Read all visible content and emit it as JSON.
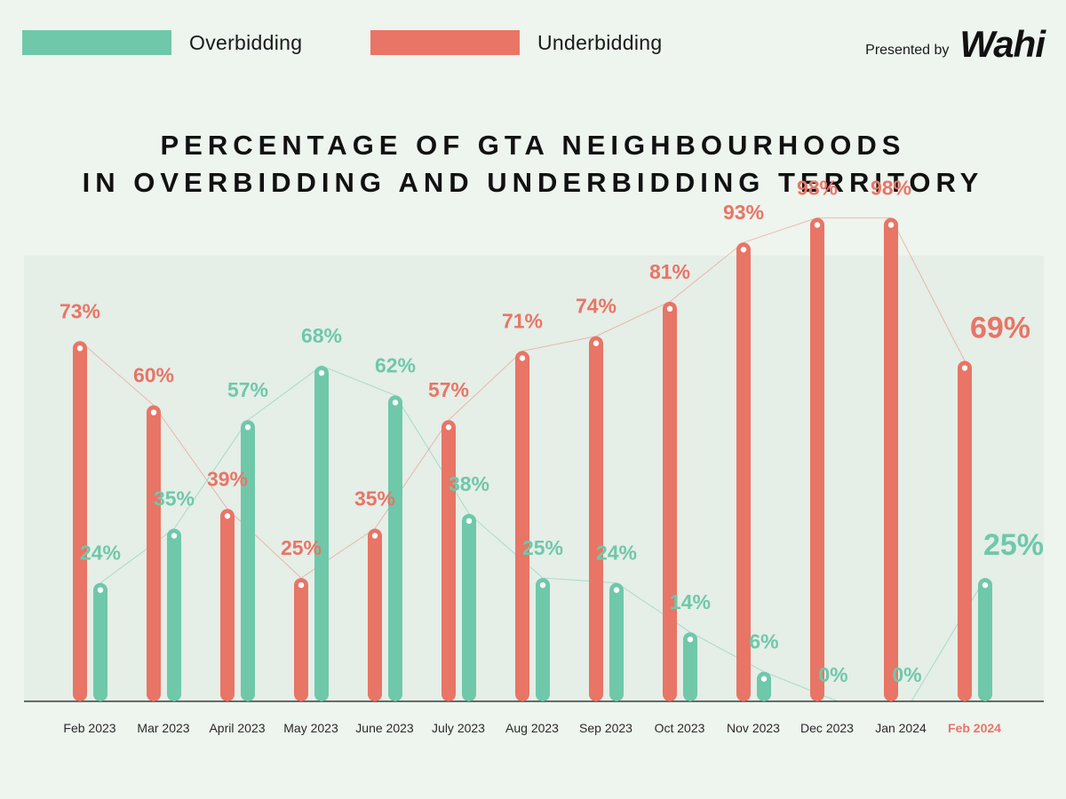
{
  "legend": {
    "over_label": "Overbidding",
    "under_label": "Underbidding"
  },
  "brand": {
    "presented_by": "Presented by",
    "logo_text": "Wahi"
  },
  "title_lines": [
    "PERCENTAGE OF GTA NEIGHBOURHOODS",
    "IN OVERBIDDING AND UNDERBIDDING TERRITORY"
  ],
  "colors": {
    "over": "#6fc8aa",
    "under": "#e87566",
    "highlight_label": "#e87566",
    "axis": "#1a1a1a"
  },
  "chart_data": {
    "type": "bar",
    "title": "PERCENTAGE OF GTA NEIGHBOURHOODS IN OVERBIDDING AND UNDERBIDDING TERRITORY",
    "categories": [
      "Feb 2023",
      "Mar 2023",
      "April 2023",
      "May 2023",
      "June 2023",
      "July 2023",
      "Aug 2023",
      "Sep 2023",
      "Oct 2023",
      "Nov 2023",
      "Dec 2023",
      "Jan 2024",
      "Feb 2024"
    ],
    "highlight_category": "Feb 2024",
    "series": [
      {
        "name": "Underbidding",
        "values": [
          73,
          60,
          39,
          25,
          35,
          57,
          71,
          74,
          81,
          93,
          98,
          98,
          69
        ]
      },
      {
        "name": "Overbidding",
        "values": [
          24,
          35,
          57,
          68,
          62,
          38,
          25,
          24,
          14,
          6,
          0,
          0,
          25
        ]
      }
    ],
    "value_suffix": "%",
    "ylim": [
      0,
      100
    ],
    "grid": false,
    "legend_position": "top-left"
  }
}
